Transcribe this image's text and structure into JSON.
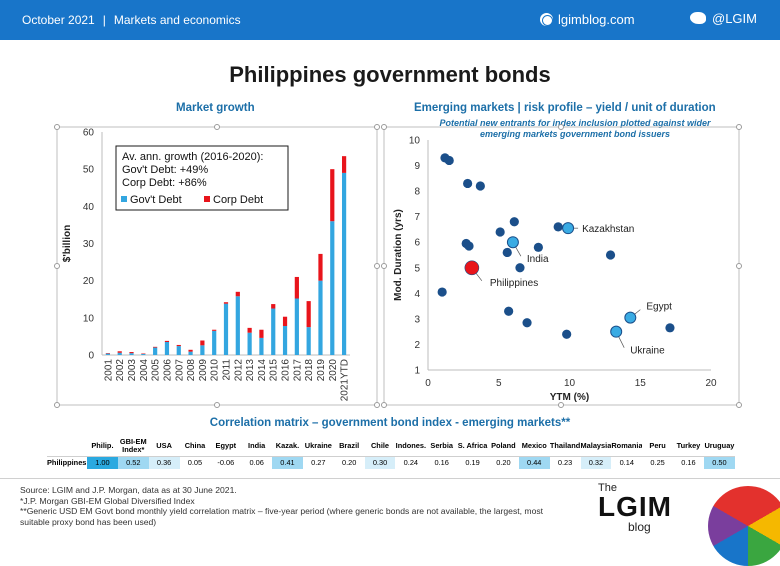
{
  "header": {
    "date": "October 2021",
    "separator": "|",
    "section": "Markets and economics",
    "site": "lgimblog.com",
    "twitter": "@LGIM"
  },
  "title": "Philippines government bonds",
  "icons": [
    "globe-icon",
    "twitter-bird-icon",
    "umbrella-logo-icon"
  ],
  "chart_data": [
    {
      "type": "bar",
      "title": "Market growth",
      "ylabel": "$'billion",
      "ylim": [
        0,
        60
      ],
      "yticks": [
        "0",
        "10",
        "20",
        "30",
        "40",
        "50",
        "60"
      ],
      "stacked": true,
      "categories": [
        "2001",
        "2002",
        "2003",
        "2004",
        "2005",
        "2006",
        "2007",
        "2008",
        "2009",
        "2010",
        "2011",
        "2012",
        "2013",
        "2014",
        "2015",
        "2016",
        "2017",
        "2018",
        "2019",
        "2020",
        "2021YTD"
      ],
      "series": [
        {
          "name": "Gov't Debt",
          "color": "#33a6e0",
          "values": [
            0.4,
            0.6,
            0.5,
            0.3,
            2.0,
            3.5,
            2.4,
            0.9,
            2.6,
            6.5,
            13.8,
            15.8,
            6.0,
            4.6,
            12.5,
            7.8,
            15.2,
            7.5,
            20.0,
            36.0,
            49.0
          ]
        },
        {
          "name": "Corp Debt",
          "color": "#e8141b",
          "values": [
            0.1,
            0.4,
            0.3,
            0.1,
            0.2,
            0.3,
            0.3,
            0.5,
            1.3,
            0.3,
            0.4,
            1.2,
            1.3,
            2.2,
            1.2,
            2.5,
            5.8,
            7.0,
            7.2,
            14.0,
            4.5
          ]
        }
      ],
      "annotation": {
        "lines": [
          "Av. ann. growth (2016-2020):",
          "Gov't Debt: +49%",
          "Corp Debt: +86%"
        ]
      }
    },
    {
      "type": "scatter",
      "title": "Emerging markets | risk profile – yield / unit of duration",
      "subtitle_lines": [
        "Potential new entrants for index inclusion plotted against wider",
        "emerging markets government bond issuers"
      ],
      "xlabel": "YTM (%)",
      "ylabel": "Mod. Duration (yrs)",
      "xlim": [
        0,
        20
      ],
      "ylim": [
        1,
        10
      ],
      "xticks": [
        "0",
        "5",
        "10",
        "15",
        "20"
      ],
      "yticks": [
        "1",
        "2",
        "3",
        "4",
        "5",
        "6",
        "7",
        "8",
        "9",
        "10"
      ],
      "colors": {
        "base": "#1b4f8a",
        "entrant": "#3aabe3",
        "highlight": "#e8141b"
      },
      "points": [
        {
          "x": 1.2,
          "y": 9.3
        },
        {
          "x": 1.5,
          "y": 9.2
        },
        {
          "x": 2.8,
          "y": 8.3
        },
        {
          "x": 3.7,
          "y": 8.2
        },
        {
          "x": 5.1,
          "y": 6.4
        },
        {
          "x": 6.1,
          "y": 6.8
        },
        {
          "x": 9.2,
          "y": 6.6
        },
        {
          "x": 2.7,
          "y": 5.95
        },
        {
          "x": 2.9,
          "y": 5.85
        },
        {
          "x": 5.6,
          "y": 5.6
        },
        {
          "x": 7.8,
          "y": 5.8
        },
        {
          "x": 12.9,
          "y": 5.5
        },
        {
          "x": 6.5,
          "y": 5.0
        },
        {
          "x": 1.0,
          "y": 4.05
        },
        {
          "x": 5.7,
          "y": 3.3
        },
        {
          "x": 7.0,
          "y": 2.85
        },
        {
          "x": 9.8,
          "y": 2.4
        },
        {
          "x": 17.1,
          "y": 2.65
        }
      ],
      "labeled_points": [
        {
          "label": "Kazakhstan",
          "x": 9.9,
          "y": 6.55,
          "kind": "entrant"
        },
        {
          "label": "India",
          "x": 6.0,
          "y": 6.0,
          "kind": "entrant"
        },
        {
          "label": "Philippines",
          "x": 3.1,
          "y": 5.0,
          "kind": "highlight"
        },
        {
          "label": "Egypt",
          "x": 14.3,
          "y": 3.05,
          "kind": "entrant"
        },
        {
          "label": "Ukraine",
          "x": 13.3,
          "y": 2.5,
          "kind": "entrant"
        }
      ]
    }
  ],
  "correlation": {
    "title": "Correlation matrix – government bond index - emerging markets**",
    "row_label": "Philippines",
    "columns": [
      "Philip.",
      "GBI-EM Index*",
      "USA",
      "China",
      "Egypt",
      "India",
      "Kazak.",
      "Ukraine",
      "Brazil",
      "Chile",
      "Indones.",
      "Serbia",
      "S. Africa",
      "Poland",
      "Mexico",
      "Thailand",
      "Malaysia",
      "Romania",
      "Peru",
      "Turkey",
      "Uruguay"
    ],
    "values": [
      "1.00",
      "0.52",
      "0.36",
      "0.05",
      "-0.06",
      "0.06",
      "0.41",
      "0.27",
      "0.20",
      "0.30",
      "0.24",
      "0.16",
      "0.19",
      "0.20",
      "0.44",
      "0.23",
      "0.32",
      "0.14",
      "0.25",
      "0.16",
      "0.50"
    ],
    "numeric": [
      1.0,
      0.52,
      0.36,
      0.05,
      -0.06,
      0.06,
      0.41,
      0.27,
      0.2,
      0.3,
      0.24,
      0.16,
      0.19,
      0.2,
      0.44,
      0.23,
      0.32,
      0.14,
      0.25,
      0.16,
      0.5
    ]
  },
  "footer": {
    "lines": [
      "Source: LGIM and J.P. Morgan, data as at 30 June 2021.",
      "*J.P. Morgan GBI-EM  Global Diversified Index",
      "**Generic USD EM  Govt bond monthly yield correlation matrix – five-year period (where generic bonds are not available, the largest, most",
      "suitable proxy bond has been used)"
    ]
  },
  "logo": {
    "the": "The",
    "main": "LGIM",
    "blog": "blog"
  }
}
